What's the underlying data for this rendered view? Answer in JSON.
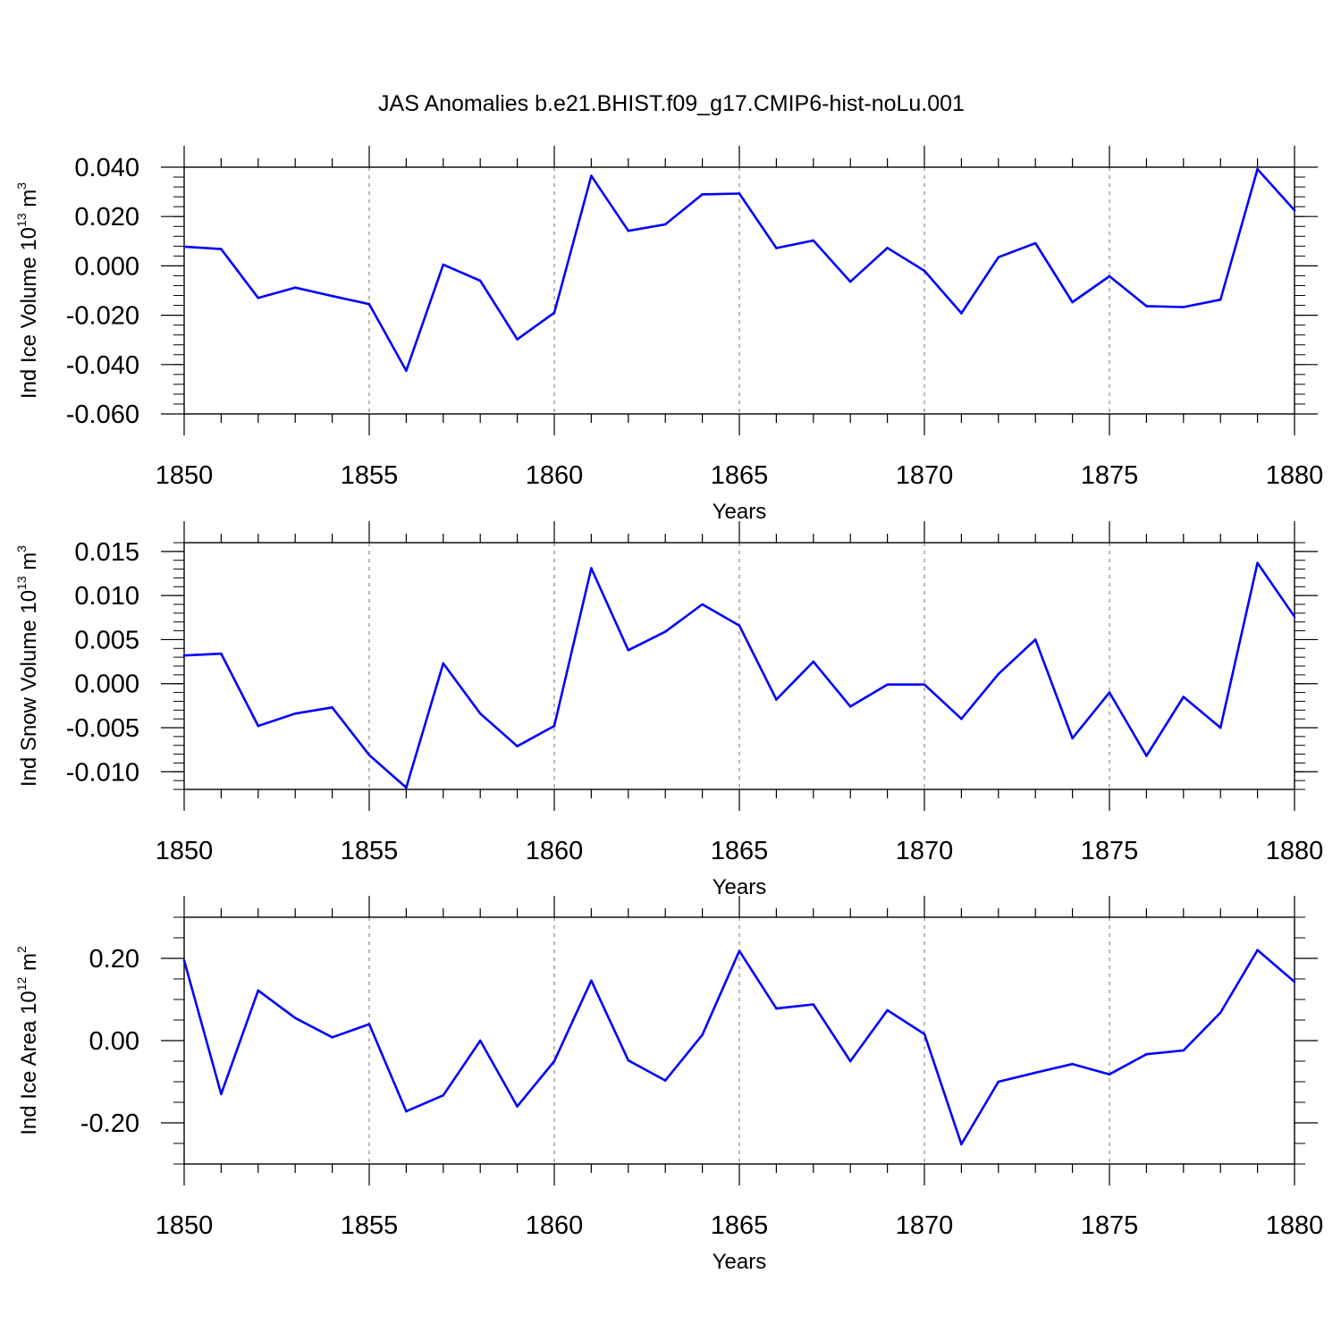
{
  "title": "JAS Anomalies b.e21.BHIST.f09_g17.CMIP6-hist-noLu.001",
  "line_color": "#0000ff",
  "chart_data": [
    {
      "type": "line",
      "title": "JAS Anomalies b.e21.BHIST.f09_g17.CMIP6-hist-noLu.001",
      "ylabel": {
        "text": "Ind Ice Volume 10",
        "sup1": "13",
        "mid": " m",
        "sup2": "3"
      },
      "xlabel": "Years",
      "xlim": [
        1850,
        1880
      ],
      "ylim": [
        -0.06,
        0.04
      ],
      "yticks": [
        -0.06,
        -0.04,
        -0.02,
        0.0,
        0.02,
        0.04
      ],
      "ytick_labels": [
        "-0.060",
        "-0.040",
        "-0.020",
        "0.000",
        "0.020",
        "0.040"
      ],
      "yminor_step": 0.004,
      "xticks": [
        1850,
        1855,
        1860,
        1865,
        1870,
        1875,
        1880
      ],
      "xtick_labels": [
        "1850",
        "1855",
        "1860",
        "1865",
        "1870",
        "1875",
        "1880"
      ],
      "x": [
        1850,
        1851,
        1852,
        1853,
        1854,
        1855,
        1856,
        1857,
        1858,
        1859,
        1860,
        1861,
        1862,
        1863,
        1864,
        1865,
        1866,
        1867,
        1868,
        1869,
        1870,
        1871,
        1872,
        1873,
        1874,
        1875,
        1876,
        1877,
        1878,
        1879,
        1880
      ],
      "values": [
        0.0078,
        0.0068,
        -0.013,
        -0.0088,
        -0.0122,
        -0.0155,
        -0.0425,
        0.0005,
        -0.006,
        -0.0298,
        -0.019,
        0.0365,
        0.0142,
        0.0168,
        0.029,
        0.0293,
        0.0072,
        0.0103,
        -0.0064,
        0.0073,
        -0.002,
        -0.0192,
        0.0035,
        0.0092,
        -0.0147,
        -0.0042,
        -0.0163,
        -0.0167,
        -0.0137,
        0.0392,
        0.0225
      ]
    },
    {
      "type": "line",
      "ylabel": {
        "text": "Ind Snow Volume 10",
        "sup1": "13",
        "mid": " m",
        "sup2": "3"
      },
      "xlabel": "Years",
      "xlim": [
        1850,
        1880
      ],
      "ylim": [
        -0.012,
        0.016
      ],
      "yticks": [
        -0.01,
        -0.005,
        0.0,
        0.005,
        0.01,
        0.015
      ],
      "ytick_labels": [
        "-0.010",
        "-0.005",
        "0.000",
        "0.005",
        "0.010",
        "0.015"
      ],
      "yminor_step": 0.001,
      "xticks": [
        1850,
        1855,
        1860,
        1865,
        1870,
        1875,
        1880
      ],
      "xtick_labels": [
        "1850",
        "1855",
        "1860",
        "1865",
        "1870",
        "1875",
        "1880"
      ],
      "x": [
        1850,
        1851,
        1852,
        1853,
        1854,
        1855,
        1856,
        1857,
        1858,
        1859,
        1860,
        1861,
        1862,
        1863,
        1864,
        1865,
        1866,
        1867,
        1868,
        1869,
        1870,
        1871,
        1872,
        1873,
        1874,
        1875,
        1876,
        1877,
        1878,
        1879,
        1880
      ],
      "values": [
        0.0032,
        0.0034,
        -0.0048,
        -0.0034,
        -0.0027,
        -0.0081,
        -0.0118,
        0.0023,
        -0.0034,
        -0.0071,
        -0.0048,
        0.0131,
        0.0038,
        0.0059,
        0.009,
        0.0066,
        -0.0018,
        0.0025,
        -0.0026,
        -0.0001,
        -0.0001,
        -0.004,
        0.0011,
        0.005,
        -0.0062,
        -0.001,
        -0.0082,
        -0.0015,
        -0.005,
        0.0137,
        0.0076
      ]
    },
    {
      "type": "line",
      "ylabel": {
        "text": "Ind Ice Area 10",
        "sup1": "12",
        "mid": " m",
        "sup2": "2"
      },
      "xlabel": "Years",
      "xlim": [
        1850,
        1880
      ],
      "ylim": [
        -0.3,
        0.3
      ],
      "yticks": [
        -0.2,
        0.0,
        0.2
      ],
      "ytick_labels": [
        "-0.20",
        "0.00",
        "0.20"
      ],
      "yminor_step": 0.05,
      "xticks": [
        1850,
        1855,
        1860,
        1865,
        1870,
        1875,
        1880
      ],
      "xtick_labels": [
        "1850",
        "1855",
        "1860",
        "1865",
        "1870",
        "1875",
        "1880"
      ],
      "x": [
        1850,
        1851,
        1852,
        1853,
        1854,
        1855,
        1856,
        1857,
        1858,
        1859,
        1860,
        1861,
        1862,
        1863,
        1864,
        1865,
        1866,
        1867,
        1868,
        1869,
        1870,
        1871,
        1872,
        1873,
        1874,
        1875,
        1876,
        1877,
        1878,
        1879,
        1880
      ],
      "values": [
        0.195,
        -0.13,
        0.122,
        0.055,
        0.008,
        0.04,
        -0.172,
        -0.133,
        0.0,
        -0.16,
        -0.05,
        0.146,
        -0.048,
        -0.097,
        0.014,
        0.218,
        0.078,
        0.088,
        -0.05,
        0.074,
        0.016,
        -0.252,
        -0.1,
        -0.078,
        -0.057,
        -0.082,
        -0.033,
        -0.024,
        0.068,
        0.22,
        0.143
      ]
    }
  ]
}
